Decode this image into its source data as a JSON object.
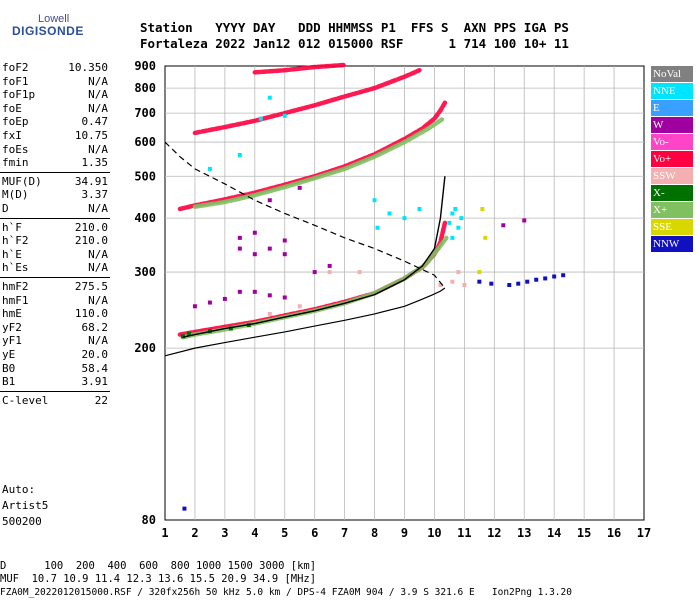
{
  "logo": {
    "line1": "Lowell",
    "line2": "DIGISONDE"
  },
  "header": {
    "line1": "Station   YYYY DAY   DDD HHMMSS P1  FFS S  AXN PPS IGA PS",
    "line2": "Fortaleza 2022 Jan12 012 015000 RSF      1 714 100 10+ 11"
  },
  "params": [
    {
      "name": "foF2",
      "value": "10.350"
    },
    {
      "name": "foF1",
      "value": "N/A"
    },
    {
      "name": "foF1p",
      "value": "N/A"
    },
    {
      "name": "foE",
      "value": "N/A"
    },
    {
      "name": "foEp",
      "value": "0.47"
    },
    {
      "name": "fxI",
      "value": "10.75"
    },
    {
      "name": "foEs",
      "value": "N/A"
    },
    {
      "name": "fmin",
      "value": "1.35"
    },
    {
      "name": "MUF(D)",
      "value": "34.91"
    },
    {
      "name": "M(D)",
      "value": "3.37"
    },
    {
      "name": "D",
      "value": "N/A"
    },
    {
      "name": "h`F",
      "value": "210.0"
    },
    {
      "name": "h`F2",
      "value": "210.0"
    },
    {
      "name": "h`E",
      "value": "N/A"
    },
    {
      "name": "h`Es",
      "value": "N/A"
    },
    {
      "name": "hmF2",
      "value": "275.5"
    },
    {
      "name": "hmF1",
      "value": "N/A"
    },
    {
      "name": "hmE",
      "value": "110.0"
    },
    {
      "name": "yF2",
      "value": "68.2"
    },
    {
      "name": "yF1",
      "value": "N/A"
    },
    {
      "name": "yE",
      "value": "20.0"
    },
    {
      "name": "B0",
      "value": "58.4"
    },
    {
      "name": "B1",
      "value": "3.91"
    },
    {
      "name": "C-level",
      "value": "22"
    }
  ],
  "autoscaling": {
    "line1": "Auto:",
    "line2": "Artist5",
    "line3": "500200"
  },
  "legend": [
    {
      "label": "NoVal",
      "color": "#808080"
    },
    {
      "label": "NNE",
      "color": "#00e5ff"
    },
    {
      "label": "E",
      "color": "#3aa0ff"
    },
    {
      "label": "W",
      "color": "#a000a0"
    },
    {
      "label": "Vo-",
      "color": "#ff44c8"
    },
    {
      "label": "Vo+",
      "color": "#ff0040"
    },
    {
      "label": "SSW",
      "color": "#f4b0b0"
    },
    {
      "label": "X-",
      "color": "#007000"
    },
    {
      "label": "X+",
      "color": "#80c060"
    },
    {
      "label": "SSE",
      "color": "#d8d800"
    },
    {
      "label": "NNW",
      "color": "#1010c0"
    }
  ],
  "footer": {
    "line1": "D      100  200  400  600  800 1000 1500 3000 [km]",
    "line2": "MUF  10.7 10.9 11.4 12.3 13.6 15.5 20.9 34.9 [MHz]",
    "line3": "FZA0M_2022012015000.RSF / 320fx256h 50 kHz 5.0 km / DPS-4 FZA0M 904 / 3.9 S 321.6 E   Ion2Png 1.3.20"
  },
  "chart_data": {
    "type": "scatter",
    "xlim": [
      1,
      17
    ],
    "ylim": [
      80,
      900
    ],
    "y_scale": "log",
    "x_ticks": [
      1,
      2,
      3,
      4,
      5,
      6,
      7,
      8,
      9,
      10,
      11,
      12,
      13,
      14,
      15,
      16,
      17
    ],
    "y_ticks": [
      80,
      200,
      300,
      400,
      500,
      600,
      700,
      800,
      900
    ],
    "grid": true,
    "legend_position": "right",
    "series": [
      {
        "name": "Vo+",
        "color": "#ff0040",
        "segments": [
          {
            "x": [
              1.5,
              2,
              3,
              4,
              5,
              6,
              7,
              8,
              9,
              9.6,
              10,
              10.2,
              10.35
            ],
            "y": [
              215,
              218,
              224,
              230,
              238,
              246,
              256,
              268,
              290,
              308,
              330,
              352,
              390
            ]
          },
          {
            "x": [
              1.5,
              2,
              3,
              4,
              5,
              6,
              7,
              8,
              9,
              9.6,
              10,
              10.2,
              10.35
            ],
            "y": [
              420,
              428,
              442,
              458,
              478,
              500,
              527,
              562,
              610,
              645,
              680,
              710,
              740
            ]
          },
          {
            "x": [
              2,
              3,
              4,
              5,
              6,
              7,
              8,
              9,
              9.5
            ],
            "y": [
              630,
              650,
              672,
              700,
              730,
              765,
              800,
              850,
              880
            ]
          },
          {
            "x": [
              4,
              5,
              6,
              7
            ],
            "y": [
              870,
              880,
              895,
              905
            ]
          }
        ]
      },
      {
        "name": "X+",
        "color": "#80c060",
        "segments": [
          {
            "x": [
              1.6,
              2,
              3,
              4,
              5,
              6,
              7,
              8,
              9,
              9.7,
              10.1,
              10.4
            ],
            "y": [
              212,
              215,
              221,
              228,
              236,
              244,
              254,
              268,
              290,
              312,
              338,
              360
            ]
          },
          {
            "x": [
              2,
              3,
              4,
              5,
              6,
              7,
              8,
              9,
              9.8,
              10.3
            ],
            "y": [
              425,
              436,
              452,
              472,
              495,
              520,
              555,
              600,
              645,
              680
            ]
          }
        ]
      },
      {
        "name": "NNE",
        "color": "#00e5ff",
        "points": [
          [
            10.5,
            390
          ],
          [
            10.6,
            410
          ],
          [
            10.7,
            420
          ],
          [
            10.8,
            380
          ],
          [
            10.9,
            400
          ],
          [
            10.6,
            360
          ],
          [
            8.1,
            380
          ],
          [
            8.5,
            410
          ],
          [
            9.0,
            400
          ],
          [
            9.5,
            420
          ],
          [
            8.0,
            440
          ],
          [
            4.5,
            760
          ],
          [
            5.0,
            690
          ],
          [
            4.2,
            680
          ],
          [
            2.5,
            520
          ],
          [
            3.5,
            560
          ]
        ]
      },
      {
        "name": "W",
        "color": "#a000a0",
        "points": [
          [
            2.0,
            250
          ],
          [
            2.5,
            255
          ],
          [
            3.0,
            260
          ],
          [
            3.5,
            270
          ],
          [
            4.0,
            270
          ],
          [
            4.5,
            265
          ],
          [
            5.0,
            262
          ],
          [
            3.5,
            340
          ],
          [
            4.0,
            330
          ],
          [
            4.5,
            340
          ],
          [
            5.0,
            330
          ],
          [
            6.0,
            300
          ],
          [
            6.5,
            310
          ],
          [
            4.0,
            370
          ],
          [
            5.0,
            355
          ],
          [
            3.5,
            360
          ],
          [
            4.5,
            440
          ],
          [
            5.5,
            470
          ],
          [
            12.3,
            385
          ],
          [
            13.0,
            395
          ]
        ]
      },
      {
        "name": "SSW",
        "color": "#f4b0b0",
        "points": [
          [
            10.2,
            280
          ],
          [
            10.6,
            285
          ],
          [
            11.0,
            280
          ],
          [
            10.8,
            300
          ],
          [
            6.5,
            300
          ],
          [
            7.5,
            300
          ],
          [
            4.5,
            240
          ],
          [
            5.5,
            250
          ]
        ]
      },
      {
        "name": "NNW",
        "color": "#1010c0",
        "points": [
          [
            12.5,
            280
          ],
          [
            12.8,
            282
          ],
          [
            13.1,
            285
          ],
          [
            13.4,
            288
          ],
          [
            13.7,
            290
          ],
          [
            14.0,
            293
          ],
          [
            14.3,
            295
          ],
          [
            11.5,
            285
          ],
          [
            11.9,
            282
          ],
          [
            1.65,
            85
          ]
        ]
      },
      {
        "name": "SSE",
        "color": "#d8d800",
        "points": [
          [
            11.5,
            300
          ],
          [
            11.7,
            360
          ],
          [
            11.6,
            420
          ]
        ]
      },
      {
        "name": "X-",
        "color": "#007000",
        "points": [
          [
            1.6,
            213
          ],
          [
            1.8,
            216
          ],
          [
            2.5,
            219
          ],
          [
            3.2,
            222
          ],
          [
            3.8,
            226
          ]
        ]
      }
    ],
    "profile": {
      "line_color": "#000000",
      "true_height": {
        "x": [
          1,
          2,
          3,
          4,
          5,
          6,
          7,
          8,
          9,
          9.5,
          9.9,
          10.2,
          10.35
        ],
        "y": [
          192,
          200,
          206,
          212,
          218,
          225,
          232,
          240,
          250,
          258,
          265,
          271,
          275.5
        ]
      },
      "virtual_trace": {
        "x": [
          1.6,
          2,
          3,
          4,
          5,
          6,
          7,
          8,
          9,
          9.6,
          10.0,
          10.2,
          10.35
        ],
        "y": [
          212,
          215,
          222,
          228,
          236,
          244,
          254,
          266,
          288,
          310,
          340,
          400,
          500
        ]
      },
      "dashed": {
        "x": [
          1,
          1.5,
          2,
          3,
          4,
          5,
          6,
          7,
          8,
          9,
          10,
          10.35
        ],
        "y": [
          600,
          555,
          520,
          480,
          440,
          410,
          385,
          360,
          340,
          318,
          295,
          275.5
        ]
      }
    }
  }
}
